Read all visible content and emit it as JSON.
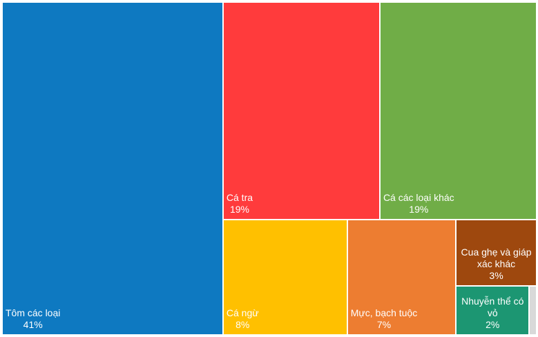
{
  "chart_data": {
    "type": "treemap",
    "categories": [
      "Tôm các loại",
      "Cá tra",
      "Cá các loại khác",
      "Cá ngừ",
      "Mực, bạch tuộc",
      "Cua ghẹ và giáp xác khác",
      "Nhuyễn thể có vỏ",
      null
    ],
    "values": [
      41,
      19,
      19,
      8,
      7,
      3,
      2,
      0.2
    ],
    "value_labels": [
      "41%",
      "19%",
      "19%",
      "8%",
      "7%",
      "3%",
      "2%",
      null
    ],
    "colors": [
      "#0e79c1",
      "#ff3b3c",
      "#70ad47",
      "#ffc000",
      "#ed7d31",
      "#9e480e",
      "#1c9672",
      "#d9d9d9"
    ]
  }
}
